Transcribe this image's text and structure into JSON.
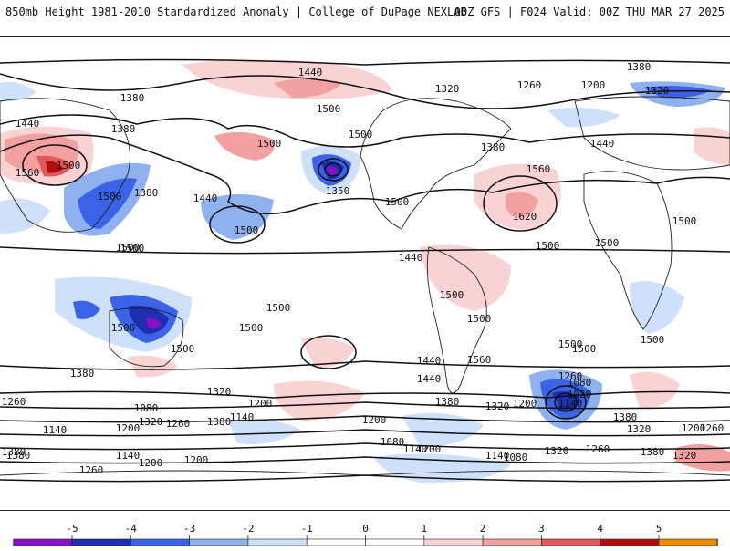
{
  "header": {
    "title_left": "850mb Height 1981-2010 Standardized Anomaly | College of DuPage NEXLAB",
    "title_right": "00Z GFS | F024 Valid: 00Z THU MAR 27 2025"
  },
  "colorbar": {
    "ticks": [
      "-5",
      "-4",
      "-3",
      "-2",
      "-1",
      "0",
      "1",
      "2",
      "3",
      "4",
      "5"
    ],
    "bins": [
      {
        "color": "#e040e0"
      },
      {
        "color": "#8a10c8"
      },
      {
        "color": "#1c2fb0"
      },
      {
        "color": "#3b63e8"
      },
      {
        "color": "#8fb1f0"
      },
      {
        "color": "#cfe0fb"
      },
      {
        "color": "#ffffff"
      },
      {
        "color": "#ffffff"
      },
      {
        "color": "#f9d3d3"
      },
      {
        "color": "#f3a0a0"
      },
      {
        "color": "#e05858"
      },
      {
        "color": "#b40d0d"
      },
      {
        "color": "#f08c00"
      },
      {
        "color": "#ffd200"
      }
    ]
  },
  "map": {
    "contour_labels": [
      "1440",
      "1380",
      "1320",
      "1260",
      "1200",
      "1380",
      "1500",
      "1440",
      "1500",
      "1380",
      "1320",
      "1380",
      "1440",
      "1560",
      "1500",
      "1500",
      "1380",
      "1500",
      "1440",
      "1350",
      "1500",
      "1560",
      "1620",
      "1500",
      "1500",
      "1500",
      "1500",
      "1440",
      "1500",
      "1500",
      "1500",
      "1500",
      "1500",
      "1500",
      "1500",
      "1500",
      "1500",
      "1500",
      "1560",
      "1440",
      "1500",
      "1440",
      "1320",
      "1380",
      "1260",
      "1200",
      "1380",
      "1320",
      "1260",
      "1200",
      "1140",
      "1080",
      "1020",
      "1140",
      "1080",
      "1140",
      "1200",
      "1320",
      "1380",
      "1260",
      "1200",
      "1380",
      "1320",
      "1260",
      "1200",
      "1140",
      "1080",
      "1200",
      "1140",
      "1080",
      "1200",
      "1140",
      "1200",
      "1260",
      "1320",
      "1380",
      "1260",
      "1380",
      "1320",
      "1380"
    ]
  }
}
